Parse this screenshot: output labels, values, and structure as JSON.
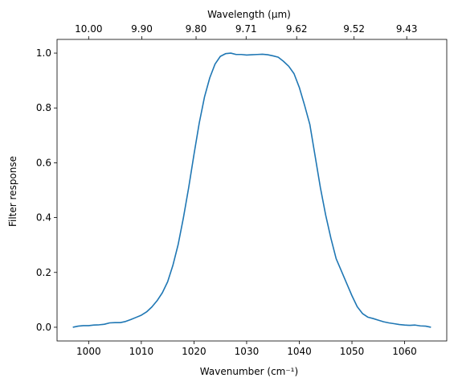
{
  "chart_data": {
    "type": "line",
    "xlabel": "Wavenumber (cm⁻¹)",
    "ylabel": "Filter response",
    "top_axis_label": "Wavelength (μm)",
    "xlim": [
      994,
      1068
    ],
    "ylim": [
      -0.05,
      1.05
    ],
    "grid": false,
    "x_ticks": [
      1000,
      1010,
      1020,
      1030,
      1040,
      1050,
      1060
    ],
    "y_ticks": [
      0.0,
      0.2,
      0.4,
      0.6,
      0.8,
      1.0
    ],
    "top_ticks": [
      {
        "wavenumber": 1000.0,
        "label": "10.00"
      },
      {
        "wavenumber": 1010.1,
        "label": "9.90"
      },
      {
        "wavenumber": 1020.4,
        "label": "9.80"
      },
      {
        "wavenumber": 1029.9,
        "label": "9.71"
      },
      {
        "wavenumber": 1039.5,
        "label": "9.62"
      },
      {
        "wavenumber": 1050.4,
        "label": "9.52"
      },
      {
        "wavenumber": 1060.4,
        "label": "9.43"
      }
    ],
    "series": [
      {
        "color": "#1f77b4",
        "x": [
          997,
          998,
          999,
          1000,
          1001,
          1002,
          1003,
          1004,
          1005,
          1006,
          1007,
          1008,
          1009,
          1010,
          1011,
          1012,
          1013,
          1014,
          1015,
          1016,
          1017,
          1018,
          1019,
          1020,
          1021,
          1022,
          1023,
          1024,
          1025,
          1026,
          1027,
          1028,
          1029,
          1030,
          1031,
          1032,
          1033,
          1034,
          1035,
          1036,
          1037,
          1038,
          1039,
          1040,
          1041,
          1042,
          1043,
          1044,
          1045,
          1046,
          1047,
          1048,
          1049,
          1050,
          1051,
          1052,
          1053,
          1054,
          1055,
          1056,
          1057,
          1058,
          1059,
          1060,
          1061,
          1062,
          1063,
          1064,
          1065
        ],
        "y": [
          0.0,
          0.004,
          0.006,
          0.006,
          0.008,
          0.009,
          0.011,
          0.016,
          0.017,
          0.017,
          0.021,
          0.028,
          0.036,
          0.044,
          0.056,
          0.074,
          0.097,
          0.126,
          0.166,
          0.226,
          0.302,
          0.4,
          0.51,
          0.63,
          0.745,
          0.84,
          0.91,
          0.96,
          0.988,
          0.998,
          1.0,
          0.995,
          0.995,
          0.993,
          0.994,
          0.995,
          0.996,
          0.994,
          0.99,
          0.985,
          0.97,
          0.952,
          0.925,
          0.875,
          0.81,
          0.74,
          0.625,
          0.51,
          0.41,
          0.325,
          0.25,
          0.205,
          0.16,
          0.115,
          0.075,
          0.05,
          0.037,
          0.032,
          0.026,
          0.02,
          0.016,
          0.013,
          0.01,
          0.008,
          0.007,
          0.008,
          0.005,
          0.004,
          0.0
        ]
      }
    ]
  }
}
